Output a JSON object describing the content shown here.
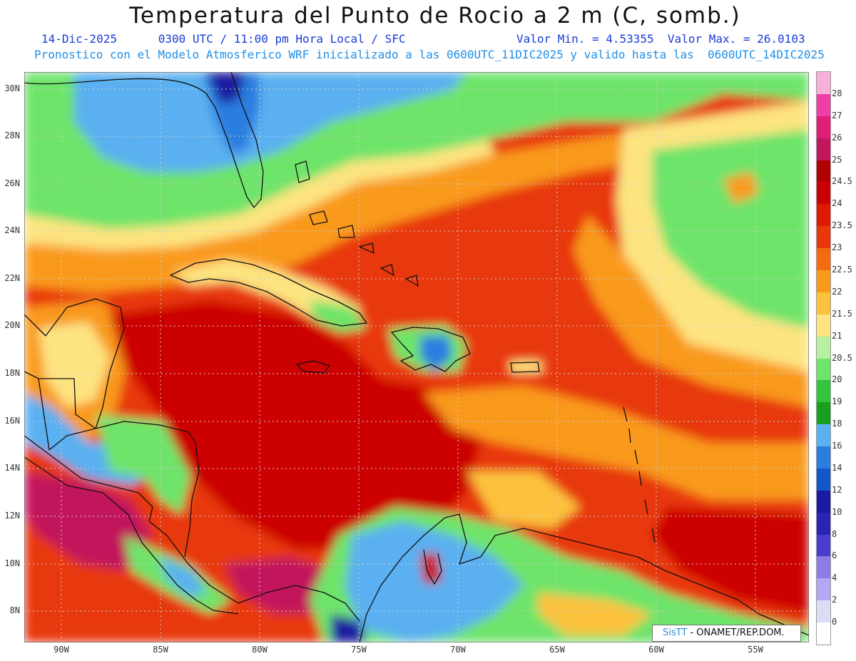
{
  "header": {
    "title": "Temperatura del Punto de Rocio a 2 m (C, somb.)",
    "date": "14-Dic-2025",
    "time": "0300 UTC / 11:00 pm Hora Local / SFC",
    "minmax": "Valor Min. = 4.53355  Valor Max. = 26.0103",
    "description": "Pronostico con el Modelo Atmosferico WRF inicializado a las 0600UTC_11DIC2025 y valido hasta las  0600UTC_14DIC2025"
  },
  "axes": {
    "lat_labels": [
      "30N",
      "28N",
      "26N",
      "24N",
      "22N",
      "20N",
      "18N",
      "16N",
      "14N",
      "12N",
      "10N",
      "8N"
    ],
    "lon_labels": [
      "90W",
      "85W",
      "80W",
      "75W",
      "70W",
      "65W",
      "60W",
      "55W"
    ]
  },
  "colorbar": {
    "labels": [
      "28",
      "27",
      "26",
      "25",
      "24.5",
      "24",
      "23.5",
      "23",
      "22.5",
      "22",
      "21.5",
      "21",
      "20.5",
      "20",
      "19",
      "18",
      "16",
      "14",
      "12",
      "10",
      "8",
      "6",
      "4",
      "2",
      "0"
    ],
    "colors": [
      "#f7b0d8",
      "#ee3fa8",
      "#e01e78",
      "#c2185b",
      "#b10000",
      "#cc0000",
      "#dd1a00",
      "#e8380a",
      "#f46a10",
      "#f99a1c",
      "#fcc23c",
      "#fde480",
      "#b7f0a0",
      "#6ee46a",
      "#32c43c",
      "#1a9e1e",
      "#5ab0f0",
      "#2a7ee0",
      "#1458c8",
      "#1a1aa0",
      "#2a24b4",
      "#4a3ccc",
      "#8c7ee6",
      "#b4a8f4",
      "#dcdcf4"
    ]
  },
  "credit": {
    "logo": "SisTT",
    "org": "- ONAMET/REP.DOM."
  },
  "colors": {
    "deep_red": "#cc0000",
    "red_orange": "#e8380a",
    "orange": "#f99a1c",
    "light_orange": "#fcc23c",
    "yellow": "#fde480",
    "light_green": "#6ee46a",
    "green": "#1a9e1e",
    "blue": "#5ab0f0",
    "dark_blue": "#2a7ee0",
    "navy": "#1a1aa0",
    "magenta": "#c2185b"
  }
}
